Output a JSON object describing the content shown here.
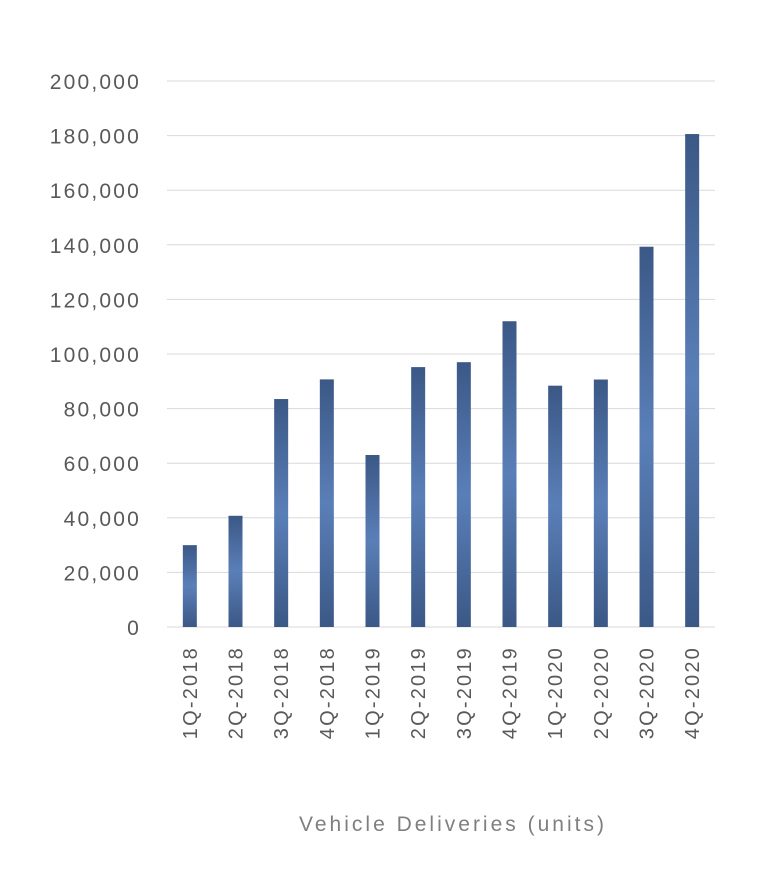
{
  "chart_data": {
    "type": "bar",
    "categories": [
      "1Q-2018",
      "2Q-2018",
      "3Q-2018",
      "4Q-2018",
      "1Q-2019",
      "2Q-2019",
      "3Q-2019",
      "4Q-2019",
      "1Q-2020",
      "2Q-2020",
      "3Q-2020",
      "4Q-2020"
    ],
    "values": [
      29980,
      40740,
      83500,
      90700,
      63000,
      95200,
      97000,
      112000,
      88400,
      90650,
      139300,
      180570
    ],
    "title": "",
    "xlabel": "Vehicle Deliveries (units)",
    "ylabel": "",
    "ylim": [
      0,
      200000
    ],
    "yticks": [
      0,
      20000,
      40000,
      60000,
      80000,
      100000,
      120000,
      140000,
      160000,
      180000,
      200000
    ],
    "ytick_labels": [
      "0",
      "20,000",
      "40,000",
      "60,000",
      "80,000",
      "100,000",
      "120,000",
      "140,000",
      "160,000",
      "180,000",
      "200,000"
    ],
    "grid": true,
    "legend": "none",
    "colors": {
      "bar_edge": "#3b5886",
      "bar_center": "#5a7fb8",
      "gridline": "#d9d9d9",
      "tick_text": "#595959",
      "axis_title_text": "#7f7f7f"
    }
  }
}
